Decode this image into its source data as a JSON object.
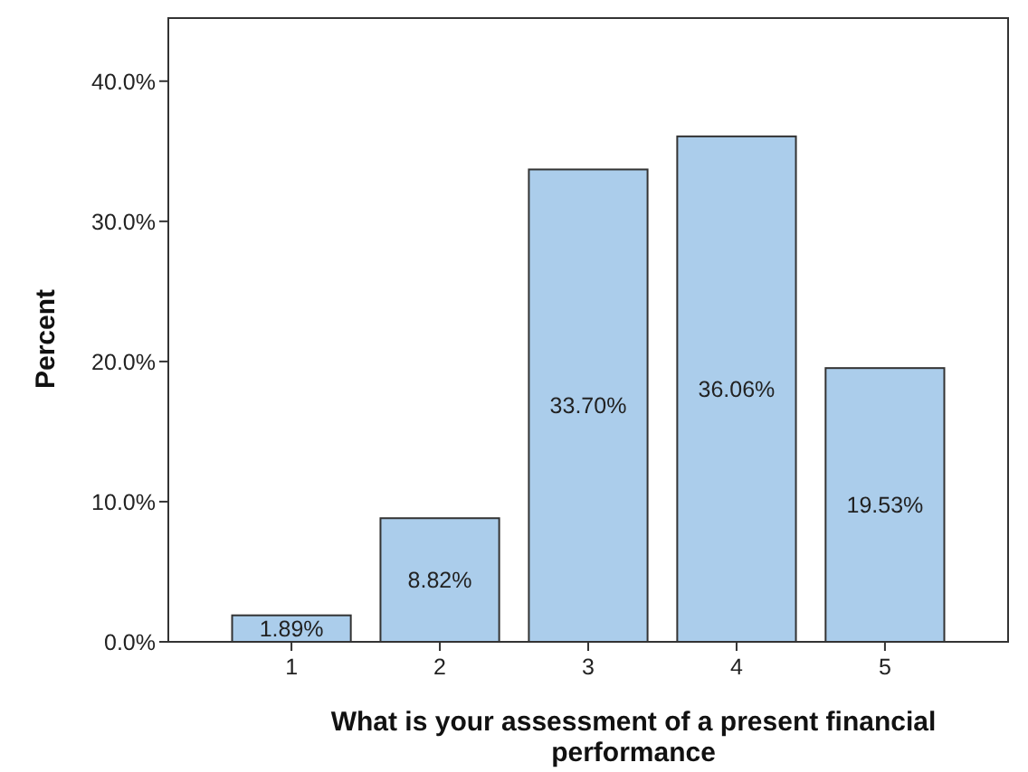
{
  "chart_data": {
    "type": "bar",
    "xlabel": "What is your assessment of a present financial performance",
    "ylabel": "Percent",
    "categories": [
      "1",
      "2",
      "3",
      "4",
      "5"
    ],
    "values": [
      1.89,
      8.82,
      33.7,
      36.06,
      19.53
    ],
    "value_labels": [
      "1.89%",
      "8.82%",
      "33.70%",
      "36.06%",
      "19.53%"
    ],
    "color": "#abcdeb",
    "ylim": [
      0,
      44.5
    ],
    "yticks": [
      {
        "value": 0,
        "label": "0.0%"
      },
      {
        "value": 10,
        "label": "10.0%"
      },
      {
        "value": 20,
        "label": "20.0%"
      },
      {
        "value": 30,
        "label": "30.0%"
      },
      {
        "value": 40,
        "label": "40.0%"
      }
    ],
    "grid": false
  }
}
